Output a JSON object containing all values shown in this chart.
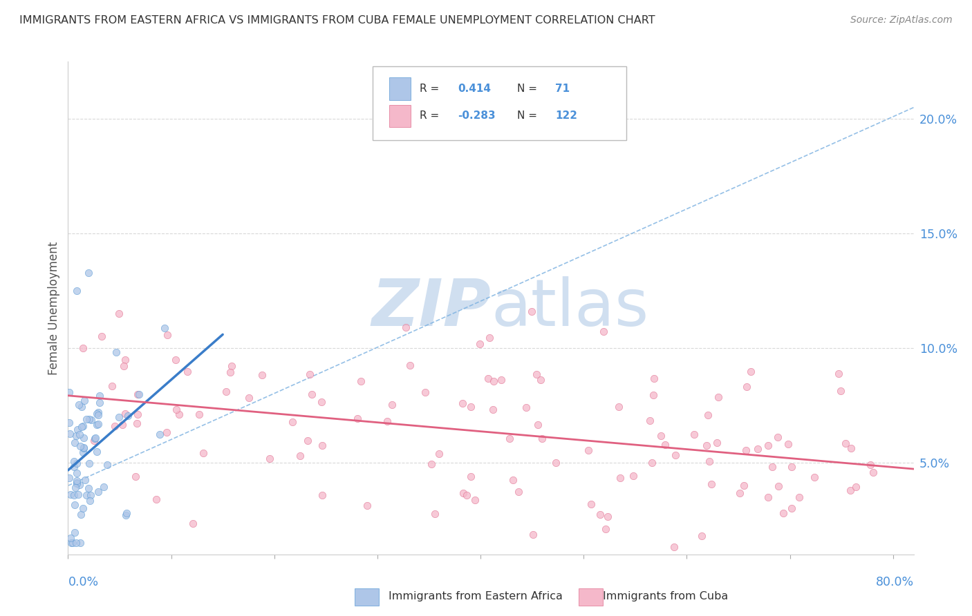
{
  "title": "IMMIGRANTS FROM EASTERN AFRICA VS IMMIGRANTS FROM CUBA FEMALE UNEMPLOYMENT CORRELATION CHART",
  "source": "Source: ZipAtlas.com",
  "ylabel": "Female Unemployment",
  "ylabel_right": [
    "5.0%",
    "10.0%",
    "15.0%",
    "20.0%"
  ],
  "ylabel_right_vals": [
    0.05,
    0.1,
    0.15,
    0.2
  ],
  "legend1_label": "Immigrants from Eastern Africa",
  "legend2_label": "Immigrants from Cuba",
  "R1": 0.414,
  "N1": 71,
  "R2": -0.283,
  "N2": 122,
  "blue_fill": "#aec6e8",
  "blue_edge": "#5b9bd5",
  "pink_fill": "#f5b8ca",
  "pink_edge": "#e07090",
  "blue_line_color": "#3a7dc9",
  "pink_line_color": "#e06080",
  "dash_line_color": "#7ab0e0",
  "watermark_color": "#d0dff0",
  "background_color": "#ffffff",
  "xmin": 0.0,
  "xmax": 0.82,
  "ymin": 0.01,
  "ymax": 0.225,
  "grid_color": "#d8d8d8",
  "title_color": "#333333",
  "source_color": "#888888",
  "axis_label_color": "#4a90d9",
  "legend_border_color": "#bbbbbb",
  "scatter_size": 55,
  "scatter_alpha": 0.75
}
